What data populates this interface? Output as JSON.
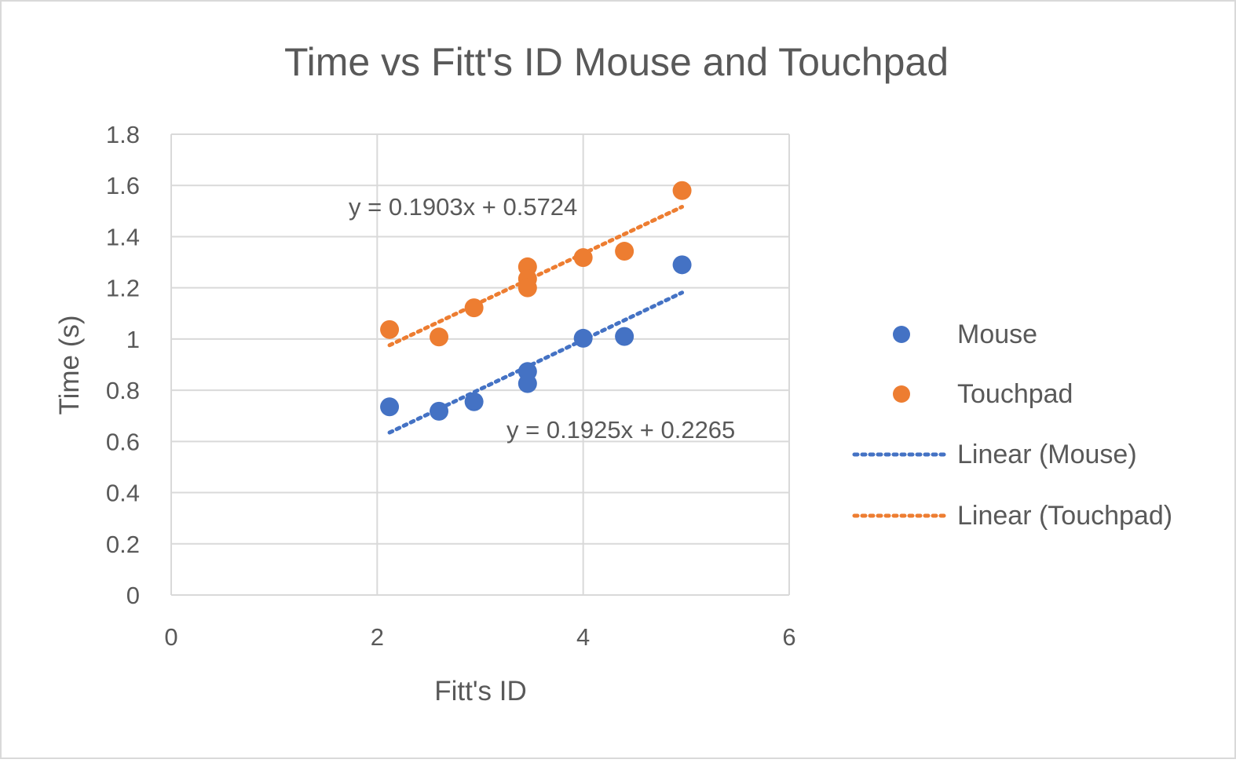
{
  "chart_data": {
    "type": "scatter",
    "title": "Time vs Fitt's ID Mouse and Touchpad",
    "xlabel": "Fitt's ID",
    "ylabel": "Time (s)",
    "xlim": [
      0,
      6
    ],
    "ylim": [
      0,
      1.8
    ],
    "x_ticks": [
      "0",
      "2",
      "4",
      "6"
    ],
    "y_ticks": [
      "0",
      "0.2",
      "0.4",
      "0.6",
      "0.8",
      "1",
      "1.2",
      "1.4",
      "1.6",
      "1.8"
    ],
    "grid": true,
    "legend_position": "right",
    "series": [
      {
        "name": "Mouse",
        "color": "#4472C4",
        "points": [
          {
            "x": 2.12,
            "y": 0.735
          },
          {
            "x": 2.6,
            "y": 0.718
          },
          {
            "x": 2.94,
            "y": 0.755
          },
          {
            "x": 3.46,
            "y": 0.873
          },
          {
            "x": 3.46,
            "y": 0.826
          },
          {
            "x": 4.0,
            "y": 1.003
          },
          {
            "x": 4.4,
            "y": 1.01
          },
          {
            "x": 4.96,
            "y": 1.29
          }
        ]
      },
      {
        "name": "Touchpad",
        "color": "#ED7D31",
        "points": [
          {
            "x": 2.12,
            "y": 1.037
          },
          {
            "x": 2.6,
            "y": 1.008
          },
          {
            "x": 2.94,
            "y": 1.122
          },
          {
            "x": 3.46,
            "y": 1.282
          },
          {
            "x": 3.46,
            "y": 1.235
          },
          {
            "x": 3.46,
            "y": 1.2
          },
          {
            "x": 4.0,
            "y": 1.318
          },
          {
            "x": 4.4,
            "y": 1.343
          },
          {
            "x": 4.96,
            "y": 1.58
          }
        ]
      }
    ],
    "trendlines": [
      {
        "name": "Linear (Mouse)",
        "color": "#4472C4",
        "slope": 0.1925,
        "intercept": 0.2265,
        "x_range": [
          2.12,
          4.96
        ],
        "equation": "y = 0.1925x + 0.2265"
      },
      {
        "name": "Linear (Touchpad)",
        "color": "#ED7D31",
        "slope": 0.1903,
        "intercept": 0.5724,
        "x_range": [
          2.12,
          4.96
        ],
        "equation": "y = 0.1903x + 0.5724"
      }
    ]
  }
}
